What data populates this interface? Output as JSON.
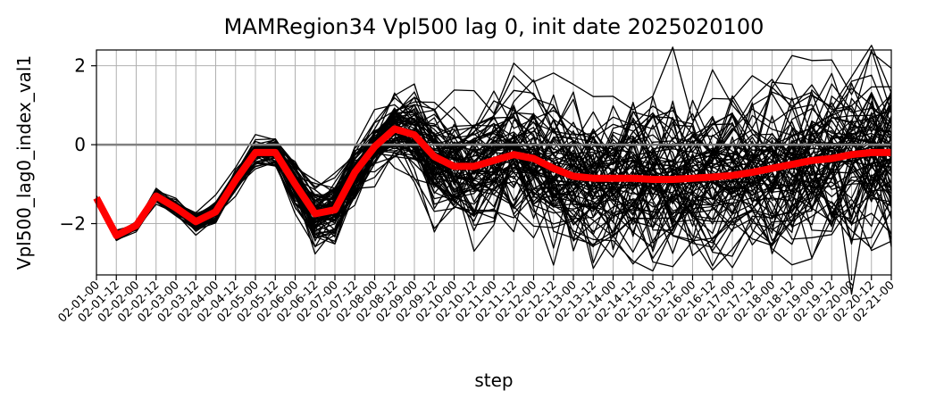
{
  "chart_data": {
    "type": "line",
    "title": "MAMRegion34 Vpl500 lag 0, init date 2025020100",
    "xlabel": "step",
    "ylabel": "Vpl500_lag0_index_val1",
    "categories": [
      "02-01-00",
      "02-01-12",
      "02-02-00",
      "02-02-12",
      "02-03-00",
      "02-03-12",
      "02-04-00",
      "02-04-12",
      "02-05-00",
      "02-05-12",
      "02-06-00",
      "02-06-12",
      "02-07-00",
      "02-07-12",
      "02-08-00",
      "02-08-12",
      "02-09-00",
      "02-09-12",
      "02-10-00",
      "02-10-12",
      "02-11-00",
      "02-11-12",
      "02-12-00",
      "02-12-12",
      "02-13-00",
      "02-13-12",
      "02-14-00",
      "02-14-12",
      "02-15-00",
      "02-15-12",
      "02-16-00",
      "02-16-12",
      "02-17-00",
      "02-17-12",
      "02-18-00",
      "02-18-12",
      "02-19-00",
      "02-19-12",
      "02-20-00",
      "02-20-12",
      "02-21-00"
    ],
    "yticks": [
      -2,
      0,
      2
    ],
    "ylim": [
      -3.3,
      2.4
    ],
    "grid": true,
    "reference_line": {
      "y": 0,
      "color": "#808080"
    },
    "ensemble": {
      "color": "#000000",
      "members": 80,
      "spread_envelope": [
        0.03,
        0.06,
        0.06,
        0.08,
        0.1,
        0.12,
        0.14,
        0.16,
        0.16,
        0.18,
        0.3,
        0.38,
        0.42,
        0.4,
        0.36,
        0.4,
        0.55,
        0.7,
        0.75,
        0.8,
        0.82,
        0.85,
        0.88,
        0.9,
        0.92,
        0.95,
        0.98,
        1.0,
        1.02,
        1.03,
        1.05,
        1.06,
        1.07,
        1.08,
        1.09,
        1.1,
        1.12,
        1.12,
        1.14,
        1.15,
        1.15
      ]
    },
    "series": [
      {
        "color": "#ff0000",
        "values": [
          -1.35,
          -2.3,
          -2.05,
          -1.3,
          -1.6,
          -1.95,
          -1.7,
          -0.9,
          -0.2,
          -0.2,
          -1.0,
          -1.75,
          -1.65,
          -0.7,
          -0.05,
          0.4,
          0.25,
          -0.3,
          -0.55,
          -0.55,
          -0.4,
          -0.25,
          -0.35,
          -0.6,
          -0.8,
          -0.85,
          -0.85,
          -0.85,
          -0.88,
          -0.88,
          -0.85,
          -0.82,
          -0.78,
          -0.7,
          -0.6,
          -0.5,
          -0.4,
          -0.35,
          -0.25,
          -0.2,
          -0.2
        ]
      }
    ]
  }
}
